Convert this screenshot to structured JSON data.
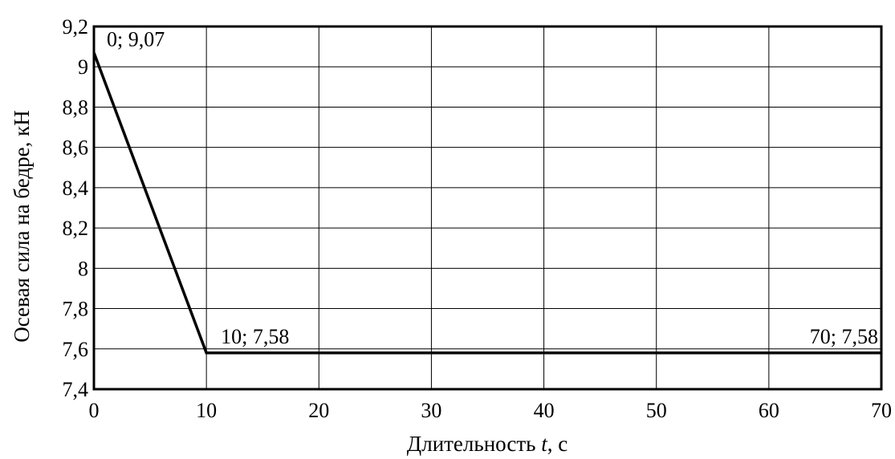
{
  "chart_data": {
    "type": "line",
    "title": "",
    "xlabel": "Длительность t, с",
    "xlabel_parts": {
      "prefix": "Длительность ",
      "var": "t",
      "suffix": ", с"
    },
    "ylabel": "Осевая сила на бедре, кН",
    "xlim": [
      0,
      70
    ],
    "ylim": [
      7.4,
      9.2
    ],
    "x_ticks": [
      0,
      10,
      20,
      30,
      40,
      50,
      60,
      70
    ],
    "x_tick_labels": [
      "0",
      "10",
      "20",
      "30",
      "40",
      "50",
      "60",
      "70"
    ],
    "y_ticks": [
      7.4,
      7.6,
      7.8,
      8.0,
      8.2,
      8.4,
      8.6,
      8.8,
      9.0,
      9.2
    ],
    "y_tick_labels": [
      "7,4",
      "7,6",
      "7,8",
      "8",
      "8,2",
      "8,4",
      "8,6",
      "8,8",
      "9",
      "9,2"
    ],
    "grid": true,
    "series": [
      {
        "x": [
          0,
          10,
          70
        ],
        "y": [
          9.07,
          7.58,
          7.58
        ]
      }
    ],
    "annotations": [
      {
        "text": "0; 9,07",
        "x": 0,
        "y": 9.07,
        "anchor": "start",
        "dx": 16,
        "dy": -8
      },
      {
        "text": "10; 7,58",
        "x": 10,
        "y": 7.58,
        "anchor": "start",
        "dx": 18,
        "dy": -12
      },
      {
        "text": "70; 7,58",
        "x": 70,
        "y": 7.58,
        "anchor": "end",
        "dx": -4,
        "dy": -12
      }
    ]
  }
}
